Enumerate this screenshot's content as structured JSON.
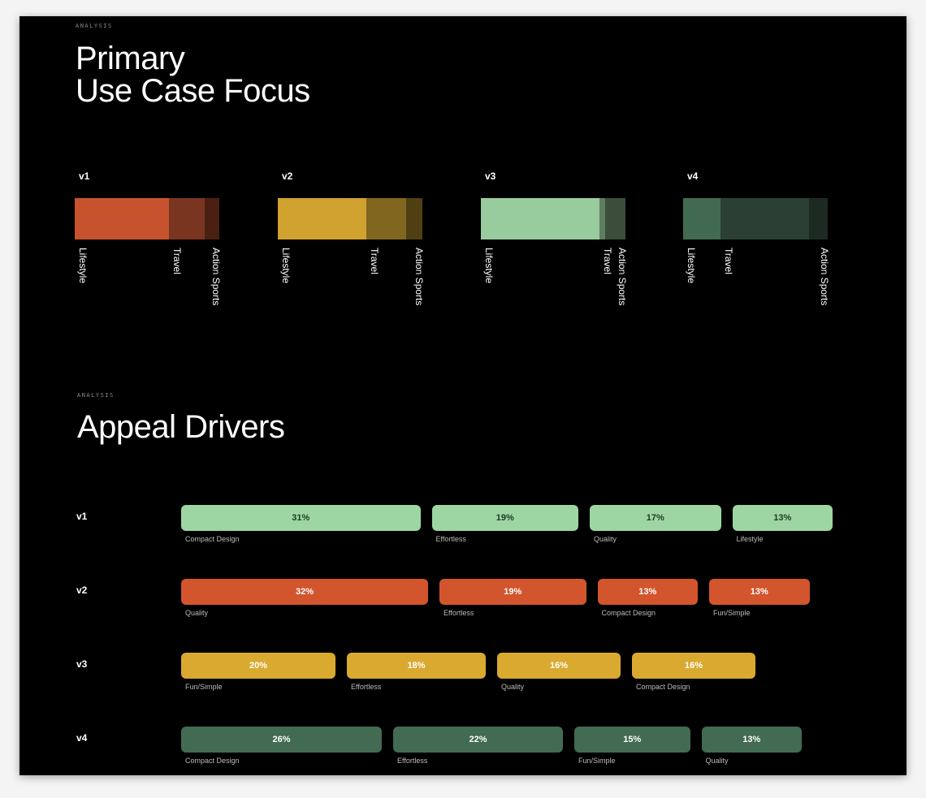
{
  "section1": {
    "eyebrow": "ANALYSIS",
    "title_line1": "Primary",
    "title_line2": "Use Case Focus"
  },
  "section2": {
    "eyebrow": "ANALYSIS",
    "title": "Appeal Drivers"
  },
  "chart_data": [
    {
      "type": "bar",
      "stacked": true,
      "orientation": "horizontal",
      "categories": [
        "Lifestyle",
        "Travel",
        "Action Sports"
      ],
      "unit": "percent (estimated from segment widths)",
      "series": [
        {
          "name": "v1",
          "values": [
            65,
            25,
            10
          ],
          "colors": [
            "#C6532E",
            "#7A3520",
            "#4A2013"
          ]
        },
        {
          "name": "v2",
          "values": [
            61,
            28,
            11
          ],
          "colors": [
            "#D0A22F",
            "#80661F",
            "#4F3F13"
          ]
        },
        {
          "name": "v3",
          "values": [
            82,
            4,
            14
          ],
          "colors": [
            "#98CC9E",
            "#5E7E5F",
            "#3A4E3B"
          ]
        },
        {
          "name": "v4",
          "values": [
            26,
            61,
            13
          ],
          "colors": [
            "#426A52",
            "#2B4032",
            "#1D2A21"
          ]
        }
      ]
    },
    {
      "type": "bar",
      "orientation": "horizontal",
      "unit": "%",
      "rows": [
        {
          "name": "v1",
          "color": "#9DD6A3",
          "text_color": "#1d3a22",
          "items": [
            {
              "label": "Compact Design",
              "value": 31
            },
            {
              "label": "Effortless",
              "value": 19
            },
            {
              "label": "Quality",
              "value": 17
            },
            {
              "label": "Lifestyle",
              "value": 13
            }
          ]
        },
        {
          "name": "v2",
          "color": "#D2552E",
          "text_color": "#ffffff",
          "items": [
            {
              "label": "Quality",
              "value": 32
            },
            {
              "label": "Effortless",
              "value": 19
            },
            {
              "label": "Compact Design",
              "value": 13
            },
            {
              "label": "Fun/Simple",
              "value": 13
            }
          ]
        },
        {
          "name": "v3",
          "color": "#DAAA30",
          "text_color": "#ffffff",
          "items": [
            {
              "label": "Fun/Simple",
              "value": 20
            },
            {
              "label": "Effortless",
              "value": 18
            },
            {
              "label": "Quality",
              "value": 16
            },
            {
              "label": "Compact Design",
              "value": 16
            }
          ]
        },
        {
          "name": "v4",
          "color": "#436A52",
          "text_color": "#ffffff",
          "items": [
            {
              "label": "Compact Design",
              "value": 26
            },
            {
              "label": "Effortless",
              "value": 22
            },
            {
              "label": "Fun/Simple",
              "value": 15
            },
            {
              "label": "Quality",
              "value": 13
            }
          ]
        }
      ]
    }
  ]
}
